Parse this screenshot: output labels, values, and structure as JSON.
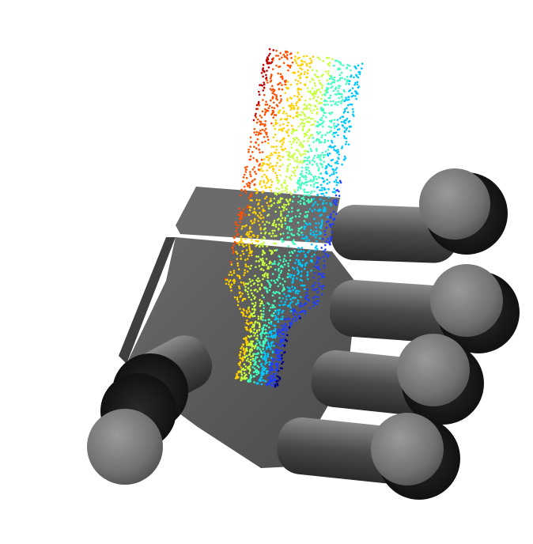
{
  "scene": {
    "background": "#ffffff",
    "palm_color": "#5a5a5a",
    "finger_color": "#6e6e6e",
    "pointcloud_colormap": [
      "#00008b",
      "#1f3fff",
      "#00c8ff",
      "#40ffc0",
      "#c8ff40",
      "#ffd000",
      "#ff5000",
      "#c00000"
    ]
  }
}
